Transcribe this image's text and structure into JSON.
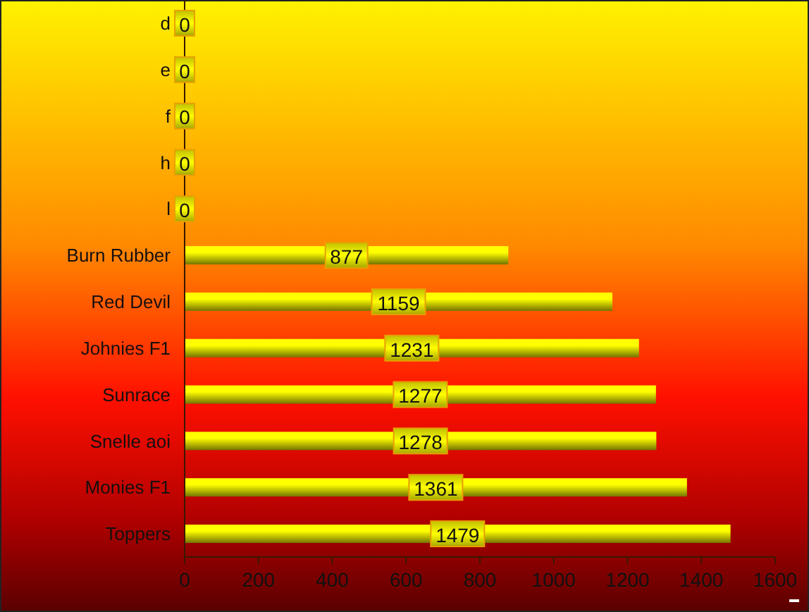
{
  "chart_data": {
    "type": "bar",
    "orientation": "horizontal",
    "categories": [
      "d",
      "e",
      "f",
      "h",
      "l",
      "Burn Rubber",
      "Red Devil",
      "Johnies F1",
      "Sunrace",
      "Snelle aoi",
      "Monies F1",
      "Toppers"
    ],
    "values": [
      0,
      0,
      0,
      0,
      0,
      877,
      1159,
      1231,
      1277,
      1278,
      1361,
      1479
    ],
    "color": "#ffff00",
    "xlim": [
      0,
      1600
    ],
    "xticks": [
      0,
      200,
      400,
      600,
      800,
      1000,
      1200,
      1400,
      1600
    ],
    "data_labels": true
  }
}
